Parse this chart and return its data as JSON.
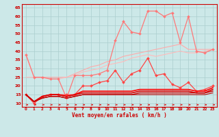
{
  "title": "",
  "xlabel": "Vent moyen/en rafales ( km/h )",
  "bg_color": "#cce8e8",
  "grid_color": "#aacece",
  "x": [
    0,
    1,
    2,
    3,
    4,
    5,
    6,
    7,
    8,
    9,
    10,
    11,
    12,
    13,
    14,
    15,
    16,
    17,
    18,
    19,
    20,
    21,
    22,
    23
  ],
  "ylim": [
    8,
    67
  ],
  "yticks": [
    10,
    15,
    20,
    25,
    30,
    35,
    40,
    45,
    50,
    55,
    60,
    65
  ],
  "lines": [
    {
      "color": "#ffaaaa",
      "lw": 0.8,
      "marker": null,
      "values": [
        38,
        25,
        25,
        25,
        25,
        25,
        27,
        29,
        31,
        32,
        34,
        35,
        37,
        38,
        39,
        40,
        41,
        42,
        43,
        44,
        41,
        41,
        41,
        41
      ]
    },
    {
      "color": "#ffbbbb",
      "lw": 0.8,
      "marker": null,
      "values": [
        25,
        25,
        25,
        24,
        24,
        25,
        26,
        28,
        29,
        30,
        32,
        33,
        34,
        36,
        37,
        38,
        37,
        38,
        39,
        40,
        39,
        39,
        40,
        41
      ]
    },
    {
      "color": "#ff7777",
      "lw": 0.9,
      "marker": "D",
      "markersize": 2.0,
      "values": [
        38,
        25,
        25,
        24,
        24,
        13,
        26,
        26,
        26,
        27,
        29,
        46,
        57,
        51,
        50,
        63,
        63,
        60,
        62,
        45,
        60,
        40,
        39,
        41
      ]
    },
    {
      "color": "#ff4444",
      "lw": 0.9,
      "marker": "D",
      "markersize": 2.0,
      "values": [
        15,
        10,
        14,
        15,
        15,
        15,
        15,
        20,
        20,
        22,
        23,
        29,
        22,
        27,
        29,
        36,
        26,
        27,
        21,
        19,
        22,
        17,
        18,
        20
      ]
    },
    {
      "color": "#ff0000",
      "lw": 1.2,
      "marker": null,
      "values": [
        15,
        11,
        14,
        15,
        15,
        14,
        15,
        17,
        17,
        17,
        17,
        17,
        17,
        17,
        18,
        18,
        18,
        18,
        18,
        18,
        18,
        17,
        17,
        19
      ]
    },
    {
      "color": "#dd0000",
      "lw": 1.2,
      "marker": null,
      "values": [
        15,
        11,
        14,
        15,
        15,
        14,
        15,
        16,
        16,
        16,
        16,
        16,
        16,
        16,
        17,
        17,
        17,
        17,
        17,
        17,
        17,
        16,
        16,
        18
      ]
    },
    {
      "color": "#cc0000",
      "lw": 1.0,
      "marker": null,
      "values": [
        15,
        11,
        13,
        14,
        14,
        13,
        14,
        15,
        15,
        15,
        15,
        15,
        15,
        15,
        16,
        16,
        16,
        16,
        16,
        16,
        16,
        16,
        16,
        17
      ]
    },
    {
      "color": "#bb0000",
      "lw": 0.8,
      "marker": null,
      "values": [
        15,
        11,
        13,
        14,
        14,
        13,
        14,
        15,
        15,
        15,
        15,
        15,
        15,
        15,
        15,
        15,
        15,
        15,
        15,
        15,
        15,
        15,
        15,
        16
      ]
    }
  ],
  "arrow_color": "#dd2222",
  "xlabel_color": "#cc0000",
  "tick_color": "#cc0000",
  "spine_color": "#cc0000"
}
